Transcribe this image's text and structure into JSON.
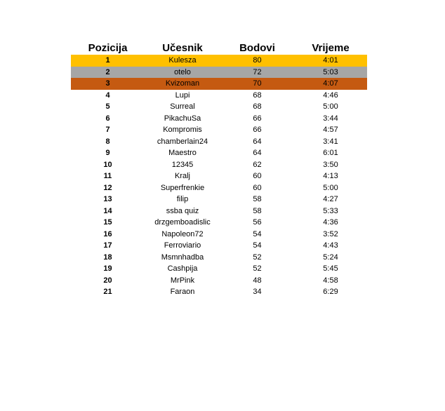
{
  "table": {
    "headers": {
      "position": "Pozicija",
      "participant": "Učesnik",
      "points": "Bodovi",
      "time": "Vrijeme"
    },
    "medal_colors": {
      "gold": "#ffc000",
      "silver": "#a6a6a6",
      "bronze": "#c55a11"
    },
    "rows": [
      {
        "position": "1",
        "name": "Kulesza",
        "points": "80",
        "time": "4:01"
      },
      {
        "position": "2",
        "name": "otelo",
        "points": "72",
        "time": "5:03"
      },
      {
        "position": "3",
        "name": "Kvizoman",
        "points": "70",
        "time": "4:07"
      },
      {
        "position": "4",
        "name": "Lupi",
        "points": "68",
        "time": "4:46"
      },
      {
        "position": "5",
        "name": "Surreal",
        "points": "68",
        "time": "5:00"
      },
      {
        "position": "6",
        "name": "PikachuSa",
        "points": "66",
        "time": "3:44"
      },
      {
        "position": "7",
        "name": "Kompromis",
        "points": "66",
        "time": "4:57"
      },
      {
        "position": "8",
        "name": "chamberlain24",
        "points": "64",
        "time": "3:41"
      },
      {
        "position": "9",
        "name": "Maestro",
        "points": "64",
        "time": "6:01"
      },
      {
        "position": "10",
        "name": "12345",
        "points": "62",
        "time": "3:50"
      },
      {
        "position": "11",
        "name": "Kralj",
        "points": "60",
        "time": "4:13"
      },
      {
        "position": "12",
        "name": "Superfrenkie",
        "points": "60",
        "time": "5:00"
      },
      {
        "position": "13",
        "name": "filip",
        "points": "58",
        "time": "4:27"
      },
      {
        "position": "14",
        "name": "ssba quiz",
        "points": "58",
        "time": "5:33"
      },
      {
        "position": "15",
        "name": "drzgemboadislic",
        "points": "56",
        "time": "4:36"
      },
      {
        "position": "16",
        "name": "Napoleon72",
        "points": "54",
        "time": "3:52"
      },
      {
        "position": "17",
        "name": "Ferroviario",
        "points": "54",
        "time": "4:43"
      },
      {
        "position": "18",
        "name": "Msmnhadba",
        "points": "52",
        "time": "5:24"
      },
      {
        "position": "19",
        "name": "Cashpija",
        "points": "52",
        "time": "5:45"
      },
      {
        "position": "20",
        "name": "MrPink",
        "points": "48",
        "time": "4:58"
      },
      {
        "position": "21",
        "name": "Faraon",
        "points": "34",
        "time": "6:29"
      }
    ]
  }
}
